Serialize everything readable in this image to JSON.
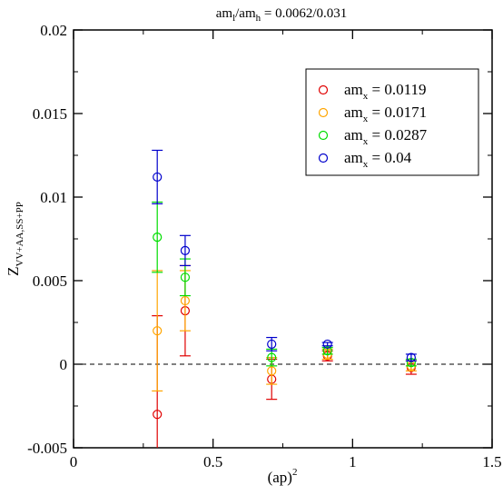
{
  "chart_data": {
    "type": "scatter",
    "title": {
      "pre": "am",
      "sub1": "l",
      "mid": "/am",
      "sub2": "h",
      "post": " = 0.0062/0.031"
    },
    "xlabel": {
      "base": "(ap)",
      "sup": "2"
    },
    "ylabel": {
      "base": "Z",
      "sub": "VV+AA,SS+PP"
    },
    "xlim": [
      0,
      1.5
    ],
    "ylim": [
      -0.005,
      0.02
    ],
    "x_ticks": [
      "0",
      "0.5",
      "1",
      "1.5"
    ],
    "y_ticks": [
      "-0.005",
      "0",
      "0.005",
      "0.01",
      "0.015",
      "0.02"
    ],
    "reference_line": {
      "y": 0,
      "style": "dashed"
    },
    "legend_position": "top-right",
    "series": [
      {
        "name": {
          "pre": "am",
          "sub": "x",
          "post": " = 0.0119"
        },
        "color": "#e00000",
        "points": [
          {
            "x": 0.3,
            "y": -0.003,
            "err": 0.0059
          },
          {
            "x": 0.4,
            "y": 0.0032,
            "err": 0.0027
          },
          {
            "x": 0.71,
            "y": -0.0009,
            "err": 0.0012
          },
          {
            "x": 0.91,
            "y": 0.0005,
            "err": 0.0003
          },
          {
            "x": 1.21,
            "y": -0.0002,
            "err": 0.0004
          }
        ]
      },
      {
        "name": {
          "pre": "am",
          "sub": "x",
          "post": " = 0.0171"
        },
        "color": "#ffa500",
        "points": [
          {
            "x": 0.3,
            "y": 0.002,
            "err": 0.0036
          },
          {
            "x": 0.4,
            "y": 0.0038,
            "err": 0.0018
          },
          {
            "x": 0.71,
            "y": -0.0004,
            "err": 0.0008
          },
          {
            "x": 0.91,
            "y": 0.0006,
            "err": 0.0003
          },
          {
            "x": 1.21,
            "y": -0.0001,
            "err": 0.0003
          }
        ]
      },
      {
        "name": {
          "pre": "am",
          "sub": "x",
          "post": " = 0.0287"
        },
        "color": "#00dd00",
        "points": [
          {
            "x": 0.3,
            "y": 0.0076,
            "err": 0.0021
          },
          {
            "x": 0.4,
            "y": 0.0052,
            "err": 0.0011
          },
          {
            "x": 0.71,
            "y": 0.0004,
            "err": 0.0005
          },
          {
            "x": 0.91,
            "y": 0.0008,
            "err": 0.0002
          },
          {
            "x": 1.21,
            "y": 0.0001,
            "err": 0.0002
          }
        ]
      },
      {
        "name": {
          "pre": "am",
          "sub": "x",
          "post": " = 0.04"
        },
        "color": "#0000cc",
        "points": [
          {
            "x": 0.3,
            "y": 0.0112,
            "err": 0.0016
          },
          {
            "x": 0.4,
            "y": 0.0068,
            "err": 0.0009
          },
          {
            "x": 0.71,
            "y": 0.0012,
            "err": 0.0004
          },
          {
            "x": 0.91,
            "y": 0.0012,
            "err": 0.0001
          },
          {
            "x": 1.21,
            "y": 0.0004,
            "err": 0.0002
          }
        ]
      }
    ]
  }
}
